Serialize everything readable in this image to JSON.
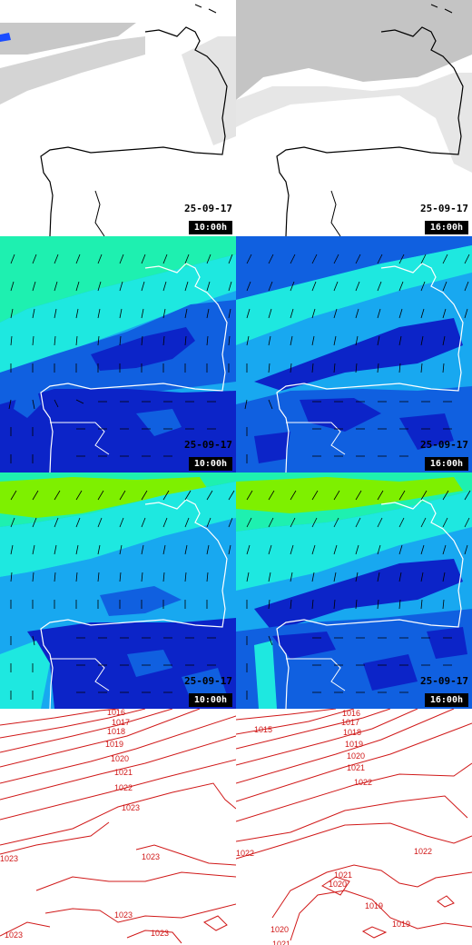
{
  "panels": [
    {
      "row": 0,
      "col": 0,
      "kind": "cloud",
      "date": "25-09-17",
      "hour": "10:00h"
    },
    {
      "row": 0,
      "col": 1,
      "kind": "cloud",
      "date": "25-09-17",
      "hour": "16:00h"
    },
    {
      "row": 1,
      "col": 0,
      "kind": "wind-low",
      "date": "25-09-17",
      "hour": "10:00h"
    },
    {
      "row": 1,
      "col": 1,
      "kind": "wind-low",
      "date": "25-09-17",
      "hour": "16:00h"
    },
    {
      "row": 2,
      "col": 0,
      "kind": "wind-high",
      "date": "25-09-17",
      "hour": "10:00h"
    },
    {
      "row": 2,
      "col": 1,
      "kind": "wind-high",
      "date": "25-09-17",
      "hour": "16:00h"
    },
    {
      "row": 3,
      "col": 0,
      "kind": "pressure"
    },
    {
      "row": 3,
      "col": 1,
      "kind": "pressure"
    }
  ],
  "isobar_labels": {
    "left": [
      "1016",
      "1017",
      "1018",
      "1019",
      "1020",
      "1021",
      "1022",
      "1023",
      "1023",
      "1023",
      "1023",
      "1023",
      "1023"
    ],
    "right": [
      "1015",
      "1016",
      "1017",
      "1018",
      "1019",
      "1020",
      "1021",
      "1022",
      "1022",
      "1022",
      "1021",
      "1020",
      "1020",
      "1019",
      "1019",
      "1021"
    ]
  },
  "colors": {
    "coast_cloud": "#000000",
    "coast_wind": "#ffffff",
    "isobar": "#d01818",
    "wind_light": "#1ee8e0",
    "wind_mid": "#18a8f0",
    "wind_strong": "#1060e0",
    "wind_max": "#0c24c8",
    "wind_calm": "#1ef0b0",
    "wind_high_band": "#7ef000",
    "cloud_gray": "#b8b8b8"
  }
}
